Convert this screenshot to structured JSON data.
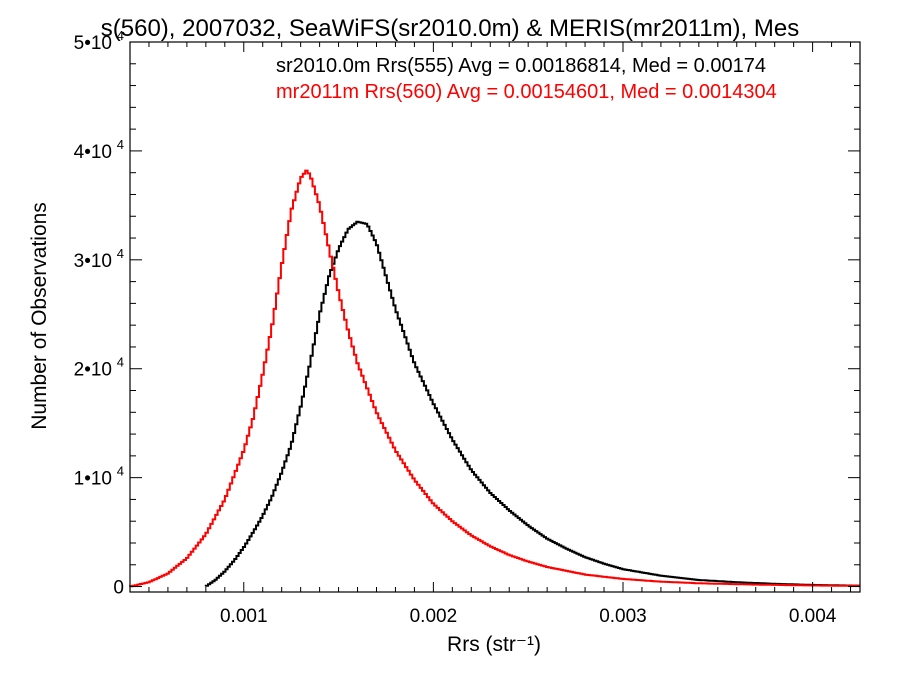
{
  "chart_data": {
    "type": "line",
    "title": "s(560), 2007032, SeaWiFS(sr2010.0m) & MERIS(mr2011m), Mes",
    "xlabel": "Rrs (str⁻¹)",
    "ylabel": "Number of Observations",
    "xlim": [
      0.0004,
      0.00425
    ],
    "ylim": [
      -500,
      50000
    ],
    "x_ticks": [
      {
        "value": 0.001,
        "label": "0.001"
      },
      {
        "value": 0.002,
        "label": "0.002"
      },
      {
        "value": 0.003,
        "label": "0.003"
      },
      {
        "value": 0.004,
        "label": "0.004"
      }
    ],
    "y_ticks": [
      {
        "value": 0,
        "label": "0",
        "exp": ""
      },
      {
        "value": 10000,
        "label": "1•10",
        "exp": "4"
      },
      {
        "value": 20000,
        "label": "2•10",
        "exp": "4"
      },
      {
        "value": 30000,
        "label": "3•10",
        "exp": "4"
      },
      {
        "value": 40000,
        "label": "4•10",
        "exp": "4"
      },
      {
        "value": 50000,
        "label": "5•10",
        "exp": "4"
      }
    ],
    "grid": false,
    "legend_position": "top-right",
    "series": [
      {
        "name": "sr2010.0m Rrs(555) Avg = 0.00186814, Med = 0.00174",
        "color": "#000000",
        "points": [
          [
            0.0008,
            0
          ],
          [
            0.00085,
            600
          ],
          [
            0.0009,
            1400
          ],
          [
            0.00095,
            2400
          ],
          [
            0.001,
            3600
          ],
          [
            0.00105,
            5000
          ],
          [
            0.0011,
            6500
          ],
          [
            0.00115,
            8300
          ],
          [
            0.0012,
            10500
          ],
          [
            0.00125,
            13000
          ],
          [
            0.0013,
            16500
          ],
          [
            0.00135,
            20500
          ],
          [
            0.0014,
            25000
          ],
          [
            0.00145,
            28500
          ],
          [
            0.0015,
            31000
          ],
          [
            0.00155,
            32800
          ],
          [
            0.0016,
            33500
          ],
          [
            0.00165,
            33300
          ],
          [
            0.0017,
            31500
          ],
          [
            0.00175,
            28500
          ],
          [
            0.0018,
            25500
          ],
          [
            0.0019,
            20500
          ],
          [
            0.002,
            16800
          ],
          [
            0.0021,
            13500
          ],
          [
            0.0022,
            10700
          ],
          [
            0.0023,
            8600
          ],
          [
            0.0024,
            7000
          ],
          [
            0.0025,
            5600
          ],
          [
            0.0026,
            4400
          ],
          [
            0.0027,
            3500
          ],
          [
            0.0028,
            2700
          ],
          [
            0.0029,
            2100
          ],
          [
            0.003,
            1600
          ],
          [
            0.0032,
            1000
          ],
          [
            0.0034,
            600
          ],
          [
            0.0036,
            400
          ],
          [
            0.0038,
            250
          ],
          [
            0.004,
            150
          ],
          [
            0.00425,
            80
          ]
        ]
      },
      {
        "name": "mr2011m Rrs(560) Avg = 0.00154601, Med = 0.0014304",
        "color": "#ff0000",
        "points": [
          [
            0.0004,
            0
          ],
          [
            0.0005,
            400
          ],
          [
            0.0006,
            1200
          ],
          [
            0.0007,
            2600
          ],
          [
            0.0008,
            4800
          ],
          [
            0.0009,
            8000
          ],
          [
            0.001,
            12500
          ],
          [
            0.00105,
            15500
          ],
          [
            0.0011,
            19500
          ],
          [
            0.00115,
            24000
          ],
          [
            0.0012,
            29500
          ],
          [
            0.00125,
            34500
          ],
          [
            0.0013,
            37500
          ],
          [
            0.00133,
            38200
          ],
          [
            0.00135,
            37800
          ],
          [
            0.0014,
            35000
          ],
          [
            0.00145,
            31000
          ],
          [
            0.0015,
            27000
          ],
          [
            0.00155,
            23500
          ],
          [
            0.0016,
            20500
          ],
          [
            0.0017,
            16000
          ],
          [
            0.0018,
            12500
          ],
          [
            0.0019,
            9800
          ],
          [
            0.002,
            7600
          ],
          [
            0.0021,
            6000
          ],
          [
            0.0022,
            4700
          ],
          [
            0.0023,
            3700
          ],
          [
            0.0024,
            2900
          ],
          [
            0.0025,
            2300
          ],
          [
            0.0026,
            1800
          ],
          [
            0.0028,
            1100
          ],
          [
            0.003,
            700
          ],
          [
            0.0032,
            450
          ],
          [
            0.0034,
            300
          ],
          [
            0.0037,
            180
          ],
          [
            0.004,
            100
          ],
          [
            0.00425,
            60
          ]
        ]
      }
    ]
  }
}
